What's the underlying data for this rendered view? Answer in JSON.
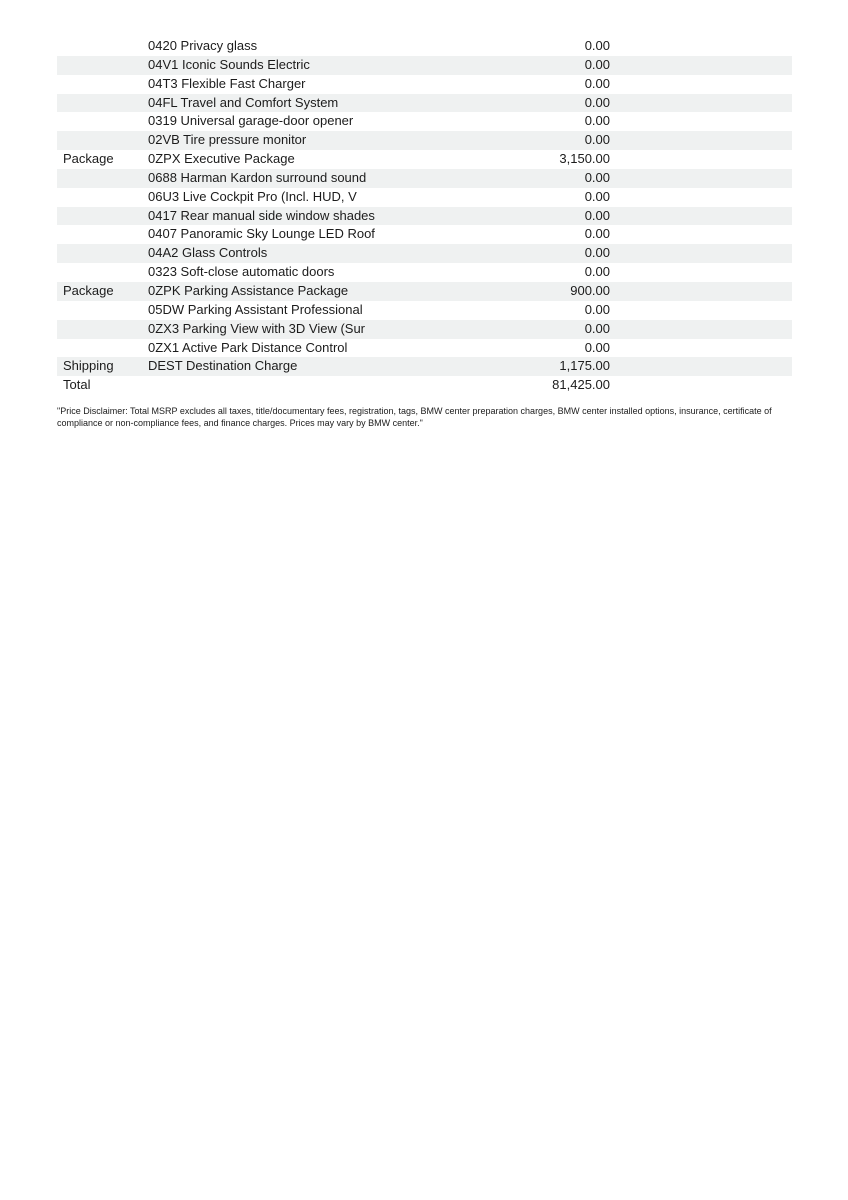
{
  "colors": {
    "background": "#ffffff",
    "stripe": "#eff1f1",
    "text": "#1c1c1c"
  },
  "options_table": {
    "columns": [
      "category",
      "item",
      "price"
    ],
    "rows": [
      {
        "category": "",
        "item": "0420 Privacy glass",
        "price": "0.00"
      },
      {
        "category": "",
        "item": "04V1 Iconic Sounds Electric",
        "price": "0.00"
      },
      {
        "category": "",
        "item": "04T3 Flexible Fast Charger",
        "price": "0.00"
      },
      {
        "category": "",
        "item": "04FL Travel and Comfort System",
        "price": "0.00"
      },
      {
        "category": "",
        "item": "0319 Universal garage-door opener",
        "price": "0.00"
      },
      {
        "category": "",
        "item": "02VB Tire pressure monitor",
        "price": "0.00"
      },
      {
        "category": "Package",
        "item": "0ZPX Executive Package",
        "price": "3,150.00"
      },
      {
        "category": "",
        "item": "0688 Harman Kardon surround sound",
        "price": "0.00"
      },
      {
        "category": "",
        "item": "06U3 Live Cockpit Pro (Incl. HUD, V",
        "price": "0.00"
      },
      {
        "category": "",
        "item": "0417 Rear manual side window shades",
        "price": "0.00"
      },
      {
        "category": "",
        "item": "0407 Panoramic Sky Lounge LED Roof",
        "price": "0.00"
      },
      {
        "category": "",
        "item": "04A2 Glass Controls",
        "price": "0.00"
      },
      {
        "category": "",
        "item": "0323 Soft-close automatic doors",
        "price": "0.00"
      },
      {
        "category": "Package",
        "item": "0ZPK Parking Assistance Package",
        "price": "900.00"
      },
      {
        "category": "",
        "item": "05DW Parking Assistant Professional",
        "price": "0.00"
      },
      {
        "category": "",
        "item": "0ZX3 Parking View with 3D View (Sur",
        "price": "0.00"
      },
      {
        "category": "",
        "item": "0ZX1 Active Park Distance Control",
        "price": "0.00"
      },
      {
        "category": "Shipping",
        "item": "DEST Destination Charge",
        "price": "1,175.00"
      },
      {
        "category": "Total",
        "item": "",
        "price": "81,425.00"
      }
    ]
  },
  "page": {
    "disclaimer": "\"Price Disclaimer: Total MSRP excludes all taxes, title/documentary fees, registration, tags, BMW center preparation charges, BMW center installed options, insurance, certificate of compliance or non-compliance fees, and finance charges. Prices may vary by BMW center.\""
  }
}
